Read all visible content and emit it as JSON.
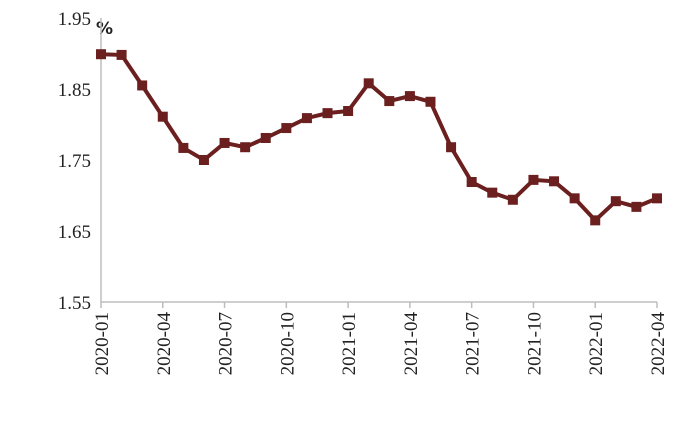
{
  "chart_data": {
    "type": "line",
    "y_unit_label": "%",
    "categories": [
      "2020-01",
      null,
      null,
      "2020-04",
      null,
      null,
      "2020-07",
      null,
      null,
      "2020-10",
      null,
      null,
      "2021-01",
      null,
      null,
      "2021-04",
      null,
      null,
      "2021-07",
      null,
      null,
      "2021-10",
      null,
      null,
      "2022-01",
      null,
      null,
      "2022-04"
    ],
    "series": [
      {
        "color": "#6b1f1f",
        "values": [
          1.899,
          1.898,
          1.855,
          1.811,
          1.767,
          1.75,
          1.774,
          1.768,
          1.781,
          1.795,
          1.809,
          1.816,
          1.819,
          1.858,
          1.833,
          1.84,
          1.832,
          1.768,
          1.719,
          1.704,
          1.694,
          1.722,
          1.72,
          1.696,
          1.665,
          1.692,
          1.684,
          1.696
        ]
      }
    ],
    "ylim": [
      1.55,
      1.95
    ],
    "yticks": [
      1.55,
      1.65,
      1.75,
      1.85,
      1.95
    ],
    "grid": false
  }
}
